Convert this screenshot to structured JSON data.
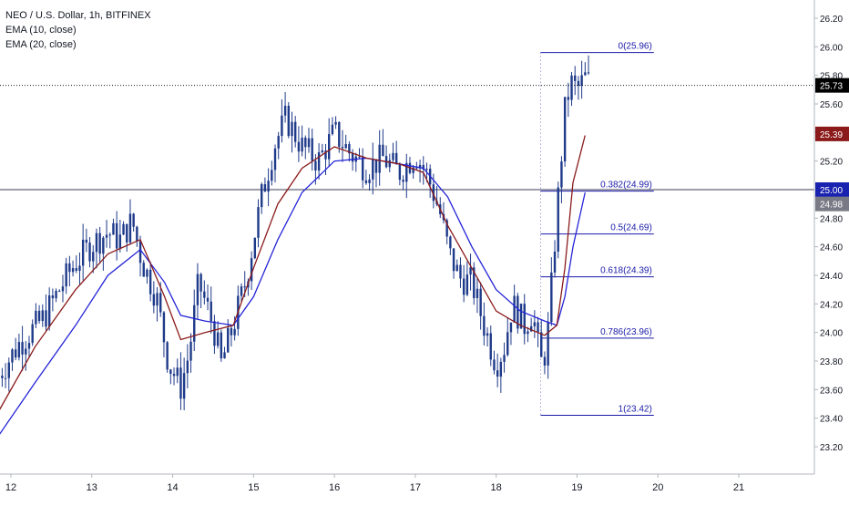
{
  "legend": {
    "symbol": "NEO / U.S. Dollar, 1h, BITFINEX",
    "ema_fast": "EMA (10, close)",
    "ema_slow": "EMA (20, close)"
  },
  "colors": {
    "candle": "#1e3a8a",
    "ema_fast": "#8b1a1a",
    "ema_slow": "#2424d8",
    "fib": "#1a1aa8",
    "hline": "#3d3d55",
    "axis_text": "#131722",
    "price_tag": "#000000",
    "ema_fast_tag": "#8b1a1a",
    "ema_slow_tag": "#1a23b0",
    "line_tag": "#787b86"
  },
  "chart_data": {
    "type": "candlestick",
    "y_axis": {
      "ylim": [
        23.0,
        26.28
      ],
      "ticks": [
        "26.20",
        "26.00",
        "25.80",
        "25.60",
        "25.40",
        "25.20",
        "24.80",
        "24.60",
        "24.40",
        "24.20",
        "24.00",
        "23.80",
        "23.60",
        "23.40",
        "23.20"
      ]
    },
    "x_axis": {
      "range": [
        11.85,
        22.0
      ],
      "ticks": [
        {
          "value": 12,
          "label": "12"
        },
        {
          "value": 13,
          "label": "13"
        },
        {
          "value": 14,
          "label": "14"
        },
        {
          "value": 15,
          "label": "15"
        },
        {
          "value": 16,
          "label": "16"
        },
        {
          "value": 17,
          "label": "17"
        },
        {
          "value": 18,
          "label": "18"
        },
        {
          "value": 19,
          "label": "19"
        },
        {
          "value": 20,
          "label": "20"
        },
        {
          "value": 21,
          "label": "21"
        }
      ]
    },
    "price_path": [
      [
        11.85,
        23.7
      ],
      [
        12.1,
        23.92
      ],
      [
        12.4,
        24.1
      ],
      [
        12.75,
        24.45
      ],
      [
        13.0,
        24.62
      ],
      [
        13.2,
        24.7
      ],
      [
        13.35,
        24.65
      ],
      [
        13.5,
        24.78
      ],
      [
        13.62,
        24.5
      ],
      [
        13.8,
        24.25
      ],
      [
        13.95,
        23.78
      ],
      [
        14.1,
        23.62
      ],
      [
        14.2,
        23.85
      ],
      [
        14.32,
        24.35
      ],
      [
        14.5,
        24.05
      ],
      [
        14.6,
        23.78
      ],
      [
        14.75,
        24.05
      ],
      [
        14.9,
        24.35
      ],
      [
        15.1,
        24.95
      ],
      [
        15.25,
        25.3
      ],
      [
        15.4,
        25.5
      ],
      [
        15.6,
        25.3
      ],
      [
        15.8,
        25.2
      ],
      [
        16.0,
        25.4
      ],
      [
        16.2,
        25.25
      ],
      [
        16.4,
        25.15
      ],
      [
        16.6,
        25.22
      ],
      [
        16.8,
        25.12
      ],
      [
        17.0,
        25.25
      ],
      [
        17.15,
        25.1
      ],
      [
        17.3,
        24.85
      ],
      [
        17.42,
        24.55
      ],
      [
        17.55,
        24.38
      ],
      [
        17.7,
        24.35
      ],
      [
        17.85,
        24.05
      ],
      [
        18.0,
        23.78
      ],
      [
        18.1,
        23.9
      ],
      [
        18.2,
        24.2
      ],
      [
        18.35,
        24.05
      ],
      [
        18.45,
        24.15
      ],
      [
        18.55,
        23.78
      ],
      [
        18.6,
        23.85
      ],
      [
        18.65,
        24.05
      ],
      [
        18.7,
        24.45
      ],
      [
        18.78,
        25.05
      ],
      [
        18.85,
        25.55
      ],
      [
        18.92,
        25.75
      ],
      [
        19.0,
        25.7
      ],
      [
        19.1,
        25.78
      ],
      [
        19.18,
        25.73
      ]
    ],
    "ema_10_path": [
      [
        11.85,
        23.45
      ],
      [
        12.3,
        23.9
      ],
      [
        12.8,
        24.3
      ],
      [
        13.2,
        24.55
      ],
      [
        13.6,
        24.65
      ],
      [
        13.9,
        24.25
      ],
      [
        14.1,
        23.95
      ],
      [
        14.4,
        24.0
      ],
      [
        14.75,
        24.05
      ],
      [
        15.0,
        24.45
      ],
      [
        15.3,
        24.9
      ],
      [
        15.6,
        25.15
      ],
      [
        16.0,
        25.3
      ],
      [
        16.4,
        25.22
      ],
      [
        16.8,
        25.18
      ],
      [
        17.1,
        25.12
      ],
      [
        17.4,
        24.75
      ],
      [
        17.7,
        24.45
      ],
      [
        18.0,
        24.15
      ],
      [
        18.3,
        24.05
      ],
      [
        18.6,
        23.98
      ],
      [
        18.75,
        24.05
      ],
      [
        18.85,
        24.45
      ],
      [
        18.95,
        25.05
      ],
      [
        19.1,
        25.38
      ]
    ],
    "ema_20_path": [
      [
        11.85,
        23.28
      ],
      [
        12.3,
        23.65
      ],
      [
        12.8,
        24.05
      ],
      [
        13.2,
        24.4
      ],
      [
        13.6,
        24.58
      ],
      [
        13.9,
        24.35
      ],
      [
        14.1,
        24.12
      ],
      [
        14.4,
        24.08
      ],
      [
        14.75,
        24.05
      ],
      [
        15.0,
        24.25
      ],
      [
        15.3,
        24.65
      ],
      [
        15.6,
        24.98
      ],
      [
        16.0,
        25.2
      ],
      [
        16.4,
        25.22
      ],
      [
        16.8,
        25.18
      ],
      [
        17.1,
        25.15
      ],
      [
        17.4,
        24.95
      ],
      [
        17.7,
        24.6
      ],
      [
        18.0,
        24.3
      ],
      [
        18.3,
        24.15
      ],
      [
        18.6,
        24.08
      ],
      [
        18.75,
        24.05
      ],
      [
        18.85,
        24.25
      ],
      [
        18.95,
        24.6
      ],
      [
        19.1,
        24.98
      ]
    ],
    "fib_levels": [
      {
        "label": "0(25.96)",
        "value": 25.96
      },
      {
        "label": "0.382(24.99)",
        "value": 24.99
      },
      {
        "label": "0.5(24.69)",
        "value": 24.69
      },
      {
        "label": "0.618(24.39)",
        "value": 24.39
      },
      {
        "label": "0.786(23.96)",
        "value": 23.96
      },
      {
        "label": "1(23.42)",
        "value": 23.42
      }
    ],
    "fib_x_range": [
      18.55,
      19.95
    ],
    "horizontal_line": {
      "value": 25.0
    },
    "last_price": {
      "value": 25.73,
      "label": "25.73"
    },
    "price_tags": [
      {
        "label": "25.73",
        "value": 25.73,
        "kind": "price_tag"
      },
      {
        "label": "25.39",
        "value": 25.39,
        "kind": "ema_fast_tag"
      },
      {
        "label": "25.00",
        "value": 25.0,
        "kind": "ema_slow_tag"
      },
      {
        "label": "24.98",
        "value": 24.9,
        "kind": "line_tag"
      }
    ]
  }
}
